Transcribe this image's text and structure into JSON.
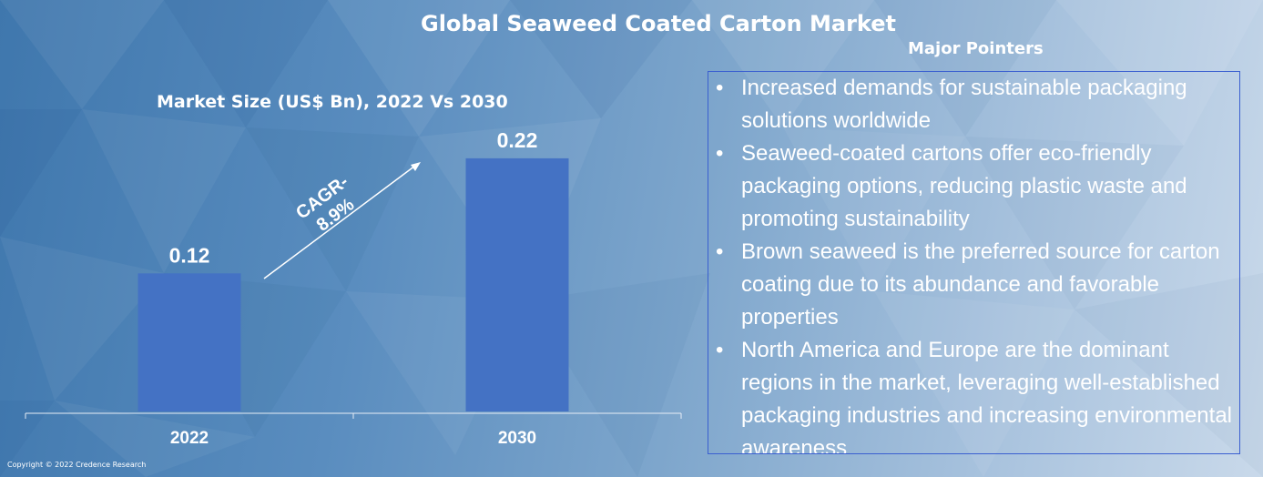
{
  "title": "Global Seaweed Coated Carton Market",
  "chart_data": {
    "type": "bar",
    "title": "Market Size (US$ Bn), 2022 Vs 2030",
    "categories": [
      "2022",
      "2030"
    ],
    "values": [
      0.12,
      0.22
    ],
    "data_labels": [
      "0.12",
      "0.22"
    ],
    "ylim": [
      0,
      0.25
    ],
    "annotation": "CAGR-\n8.9%",
    "bar_color": "#4472c4",
    "grid": false,
    "legend": "none"
  },
  "pointers": {
    "heading": "Major Pointers",
    "items": [
      "Increased demands for sustainable packaging solutions worldwide",
      "Seaweed-coated cartons offer eco-friendly packaging options, reducing plastic waste and promoting sustainability",
      "Brown seaweed is the preferred source for carton coating due to its abundance and favorable properties",
      "North America and Europe are the dominant regions in the market, leveraging well-established packaging industries and increasing environmental awareness"
    ]
  },
  "copyright": "Copyright © 2022 Credence Research"
}
